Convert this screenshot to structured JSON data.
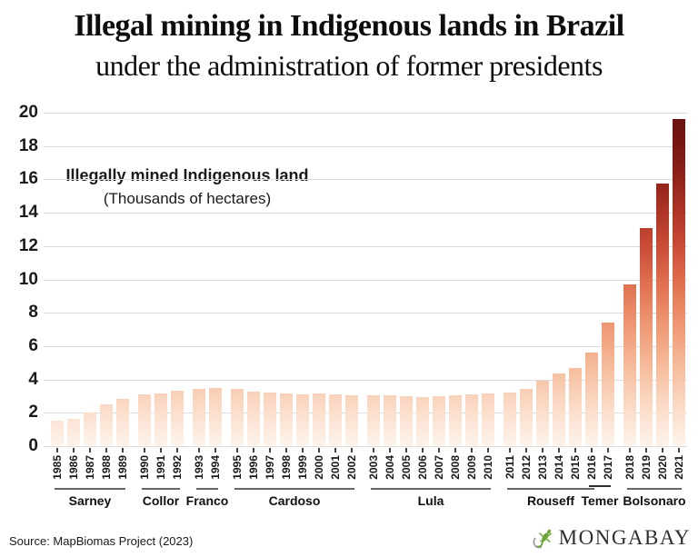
{
  "title": "Illegal mining in Indigenous lands in Brazil",
  "subtitle": "under the administration of former presidents",
  "annotation": {
    "line1": "Illegally mined Indigenous land",
    "line2": "(Thousands of hectares)"
  },
  "source": "Source: MapBiomas Project (2023)",
  "brand": {
    "name": "MONGABAY",
    "gecko_green": "#6ea43c",
    "swirl_gray": "#9b9b9b",
    "text_color": "#2f2f2f"
  },
  "chart_data": {
    "type": "bar",
    "series_label": "Illegally mined Indigenous land",
    "unit": "Thousands of hectares",
    "x": [
      "1985",
      "1986",
      "1987",
      "1988",
      "1989",
      "1990",
      "1991",
      "1992",
      "1993",
      "1994",
      "1995",
      "1996",
      "1997",
      "1998",
      "1999",
      "2000",
      "2001",
      "2002",
      "2003",
      "2004",
      "2005",
      "2006",
      "2007",
      "2008",
      "2009",
      "2010",
      "2011",
      "2012",
      "2013",
      "2014",
      "2015",
      "2016",
      "2017",
      "2018",
      "2019",
      "2020",
      "2021"
    ],
    "values": [
      1.5,
      1.65,
      2.0,
      2.5,
      2.85,
      3.1,
      3.15,
      3.3,
      3.45,
      3.5,
      3.45,
      3.25,
      3.2,
      3.15,
      3.1,
      3.15,
      3.1,
      3.05,
      3.05,
      3.05,
      3.0,
      2.95,
      3.0,
      3.05,
      3.1,
      3.15,
      3.2,
      3.45,
      3.95,
      4.35,
      4.7,
      5.6,
      7.4,
      9.7,
      13.1,
      15.75,
      19.6
    ],
    "ylim": [
      0,
      20
    ],
    "ytick_step": 2,
    "grid": true,
    "gradient_stops": [
      "#fdf4ec",
      "#fbdfcd",
      "#f7c6a9",
      "#f3aa87",
      "#eb8c68",
      "#de6c4d",
      "#ca4c36",
      "#ae3526",
      "#90231a",
      "#781712",
      "#671010"
    ],
    "presidents": [
      {
        "name": "Sarney",
        "start": "1985",
        "end": "1989"
      },
      {
        "name": "Collor",
        "start": "1990",
        "end": "1992"
      },
      {
        "name": "Franco",
        "start": "1993",
        "end": "1994"
      },
      {
        "name": "Cardoso",
        "start": "1995",
        "end": "2002"
      },
      {
        "name": "Lula",
        "start": "2003",
        "end": "2010"
      },
      {
        "name": "Rouseff",
        "start": "2011",
        "end": "2016"
      },
      {
        "name": "Temer",
        "start": "2016",
        "end": "2017",
        "raised": true
      },
      {
        "name": "Bolsonaro",
        "start": "2018",
        "end": "2021"
      }
    ],
    "gap_after_years": [
      "1989",
      "1992",
      "1994",
      "2002",
      "2010",
      "2017"
    ],
    "colors": {
      "grid": "#dcdcdc",
      "axis_text": "#1a1a1a",
      "tick": "#444444",
      "president_underline": "#666666",
      "temer_underline": "#2e2e2e"
    }
  }
}
